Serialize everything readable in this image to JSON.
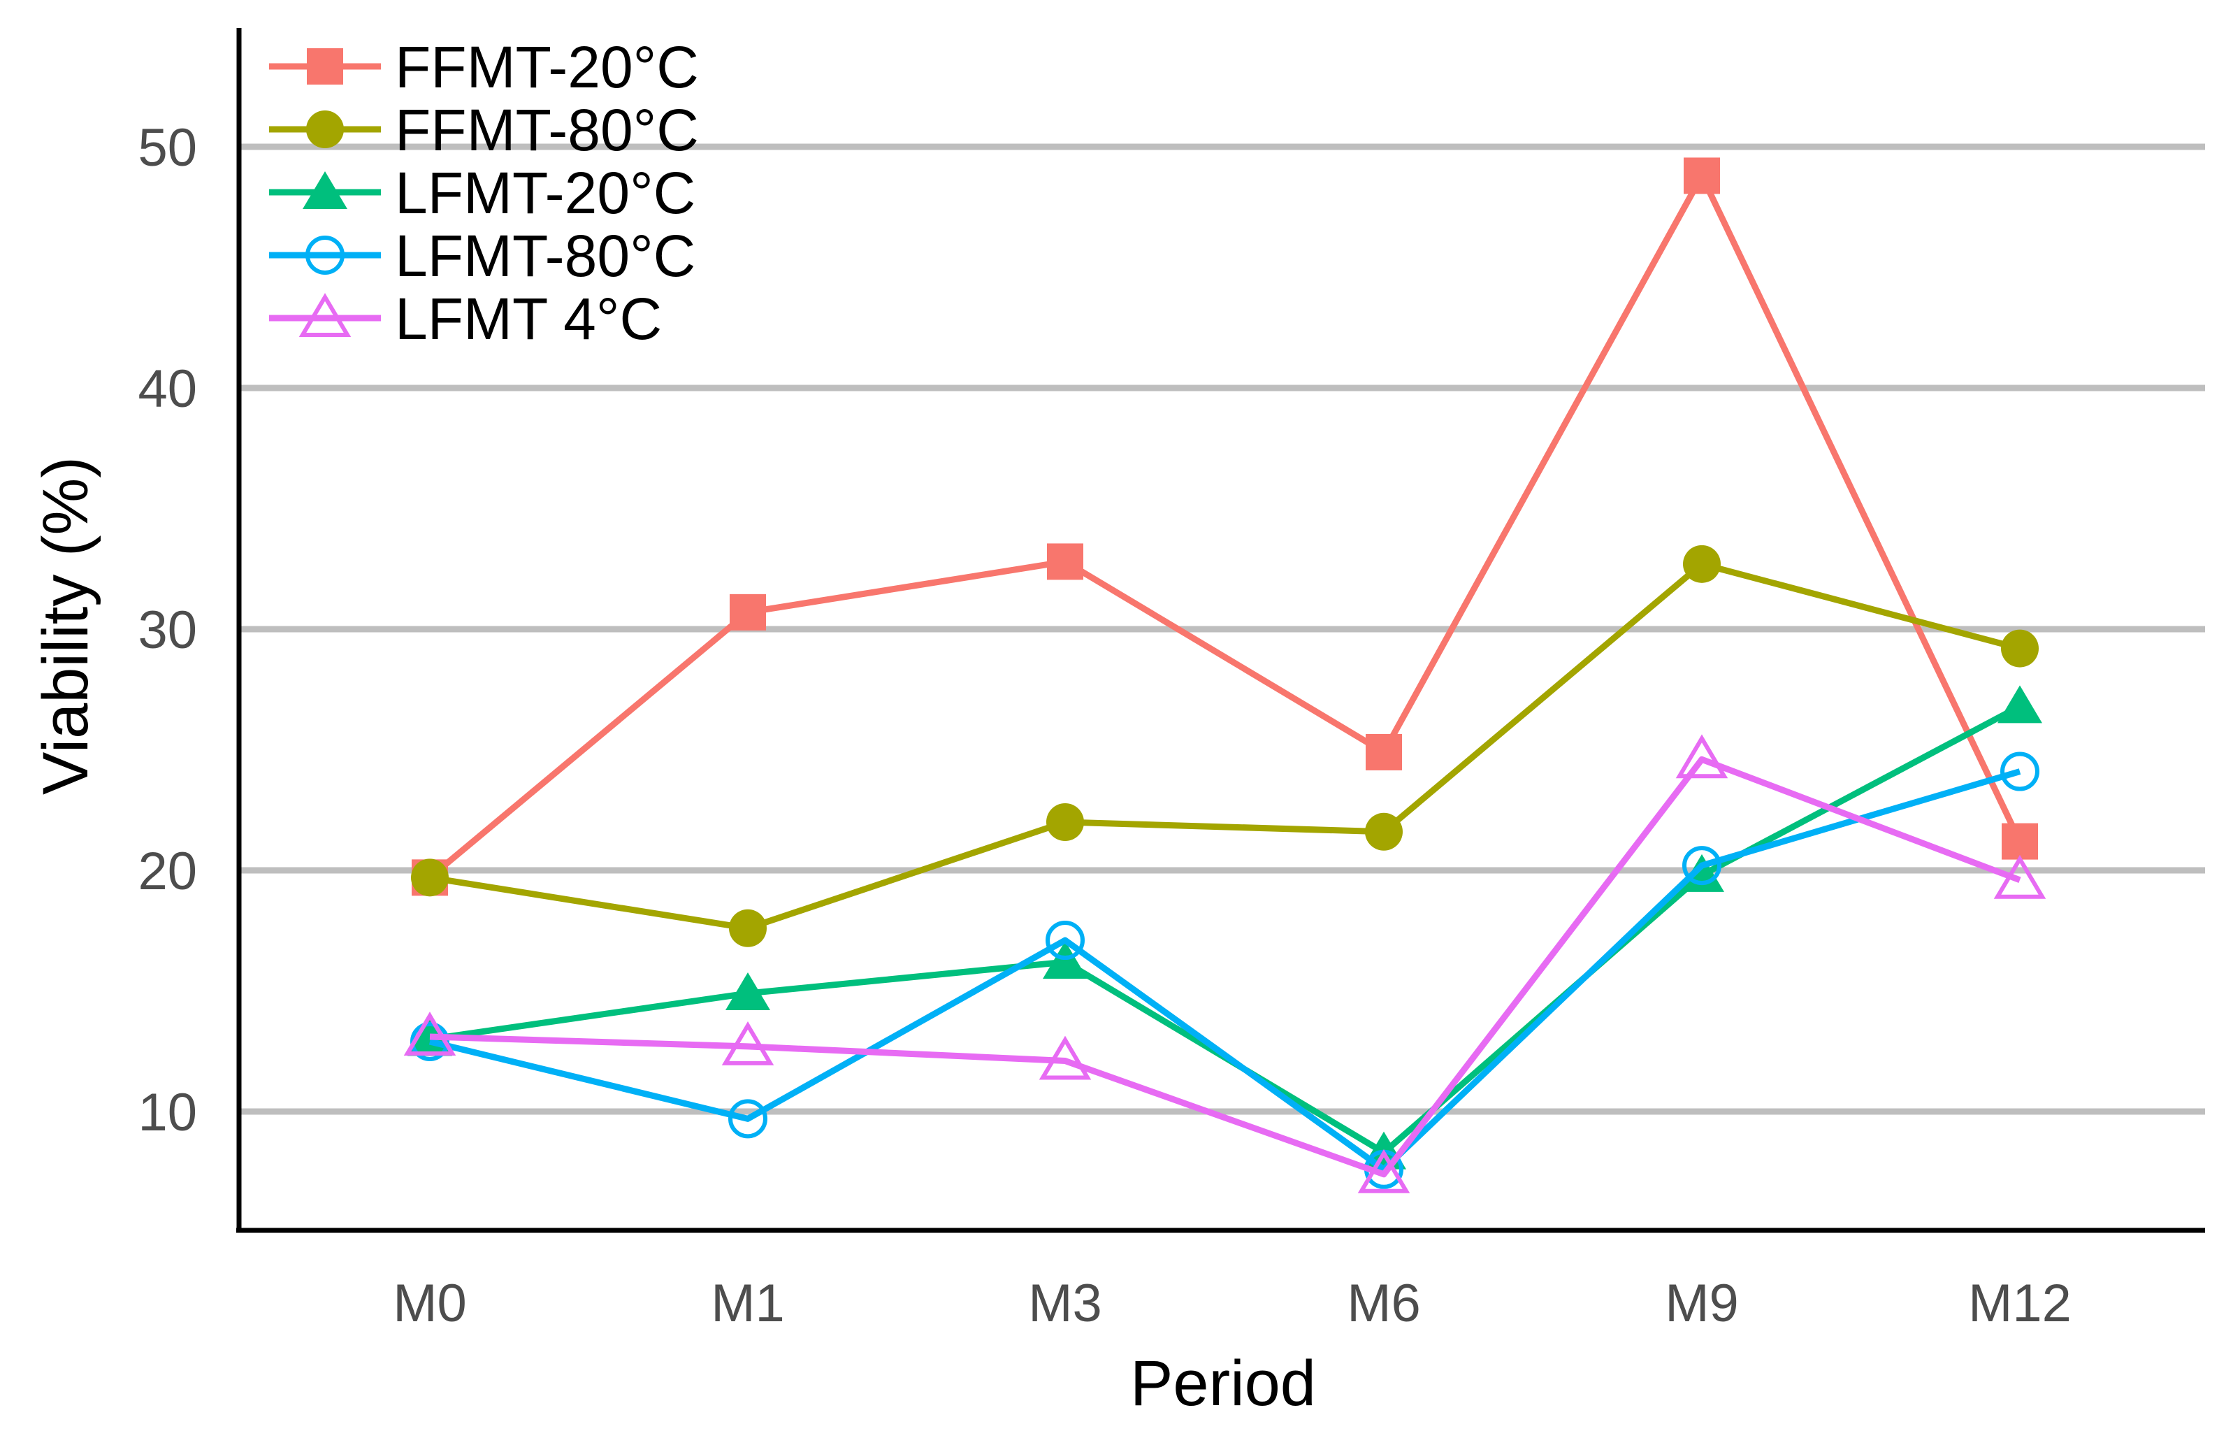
{
  "chart_data": {
    "type": "line",
    "title": "",
    "xlabel": "Period",
    "ylabel": "Viability (%)",
    "categories": [
      "M0",
      "M1",
      "M3",
      "M6",
      "M9",
      "M12"
    ],
    "ylim": [
      5,
      55
    ],
    "yticks": [
      10,
      20,
      30,
      40,
      50
    ],
    "grid": "horizontal",
    "legend_position": "top-left",
    "series": [
      {
        "name": "FFMT-20°C",
        "color": "#F8766D",
        "marker": "square",
        "values": [
          19.7,
          30.7,
          32.8,
          24.9,
          48.8,
          21.2
        ]
      },
      {
        "name": "FFMT-80°C",
        "color": "#A3A500",
        "marker": "circle",
        "values": [
          19.7,
          17.6,
          22.0,
          21.6,
          32.7,
          29.2
        ]
      },
      {
        "name": "LFMT-20°C",
        "color": "#00BF7D",
        "marker": "triangle",
        "values": [
          13.0,
          14.9,
          16.2,
          8.3,
          19.8,
          26.8
        ]
      },
      {
        "name": "LFMT-80°C",
        "color": "#00B0F6",
        "marker": "circle-open",
        "values": [
          12.9,
          9.7,
          17.1,
          7.6,
          20.2,
          24.1
        ]
      },
      {
        "name": "LFMT 4°C",
        "color": "#E76BF3",
        "marker": "triangle-open",
        "values": [
          13.1,
          12.7,
          12.1,
          7.4,
          24.6,
          19.6
        ]
      }
    ]
  }
}
